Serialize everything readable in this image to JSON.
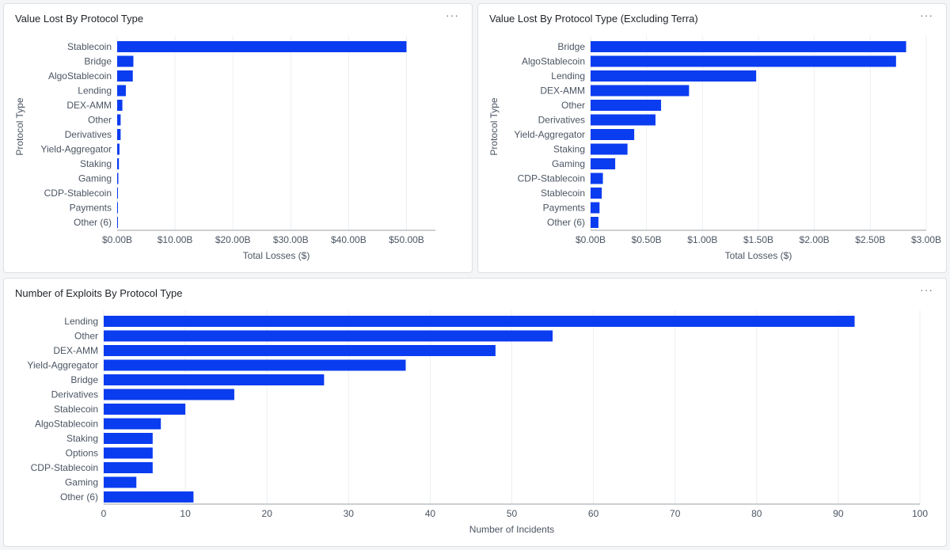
{
  "colors": {
    "bar": "#0a3cf0",
    "grid": "#eceef1",
    "axis": "#9aa0a6"
  },
  "panels": [
    {
      "title": "Value Lost By Protocol Type",
      "menu_label": "···"
    },
    {
      "title": "Value Lost By Protocol Type (Excluding Terra)",
      "menu_label": "···"
    },
    {
      "title": "Number of Exploits By Protocol Type",
      "menu_label": "···"
    }
  ],
  "chart_data": [
    {
      "type": "bar",
      "orientation": "horizontal",
      "title": "Value Lost By Protocol Type",
      "xlabel": "Total Losses ($)",
      "ylabel": "Protocol Type",
      "xlim": [
        0,
        55
      ],
      "xticks": [
        0,
        10,
        20,
        30,
        40,
        50
      ],
      "xtick_labels": [
        "$0.00B",
        "$10.00B",
        "$20.00B",
        "$30.00B",
        "$40.00B",
        "$50.00B"
      ],
      "unit": "billions USD",
      "categories": [
        "Stablecoin",
        "Bridge",
        "AlgoStablecoin",
        "Lending",
        "DEX-AMM",
        "Other",
        "Derivatives",
        "Yield-Aggregator",
        "Staking",
        "Gaming",
        "CDP-Stablecoin",
        "Payments",
        "Other (6)"
      ],
      "values": [
        50.0,
        2.8,
        2.7,
        1.5,
        0.9,
        0.6,
        0.6,
        0.4,
        0.3,
        0.2,
        0.1,
        0.08,
        0.07
      ]
    },
    {
      "type": "bar",
      "orientation": "horizontal",
      "title": "Value Lost By Protocol Type (Excluding Terra)",
      "xlabel": "Total Losses ($)",
      "ylabel": "Protocol Type",
      "xlim": [
        0,
        3.0
      ],
      "xticks": [
        0,
        0.5,
        1.0,
        1.5,
        2.0,
        2.5,
        3.0
      ],
      "xtick_labels": [
        "$0.00B",
        "$0.50B",
        "$1.00B",
        "$1.50B",
        "$2.00B",
        "$2.50B",
        "$3.00B"
      ],
      "unit": "billions USD",
      "categories": [
        "Bridge",
        "AlgoStablecoin",
        "Lending",
        "DEX-AMM",
        "Other",
        "Derivatives",
        "Yield-Aggregator",
        "Staking",
        "Gaming",
        "CDP-Stablecoin",
        "Stablecoin",
        "Payments",
        "Other (6)"
      ],
      "values": [
        2.82,
        2.73,
        1.48,
        0.88,
        0.63,
        0.58,
        0.39,
        0.33,
        0.22,
        0.11,
        0.1,
        0.08,
        0.07
      ]
    },
    {
      "type": "bar",
      "orientation": "horizontal",
      "title": "Number of Exploits By Protocol Type",
      "xlabel": "Number of Incidents",
      "ylabel": "",
      "xlim": [
        0,
        100
      ],
      "xticks": [
        0,
        10,
        20,
        30,
        40,
        50,
        60,
        70,
        80,
        90,
        100
      ],
      "xtick_labels": [
        "0",
        "10",
        "20",
        "30",
        "40",
        "50",
        "60",
        "70",
        "80",
        "90",
        "100"
      ],
      "categories": [
        "Lending",
        "Other",
        "DEX-AMM",
        "Yield-Aggregator",
        "Bridge",
        "Derivatives",
        "Stablecoin",
        "AlgoStablecoin",
        "Staking",
        "Options",
        "CDP-Stablecoin",
        "Gaming",
        "Other (6)"
      ],
      "values": [
        92,
        55,
        48,
        37,
        27,
        16,
        10,
        7,
        6,
        6,
        6,
        4,
        11
      ]
    }
  ]
}
